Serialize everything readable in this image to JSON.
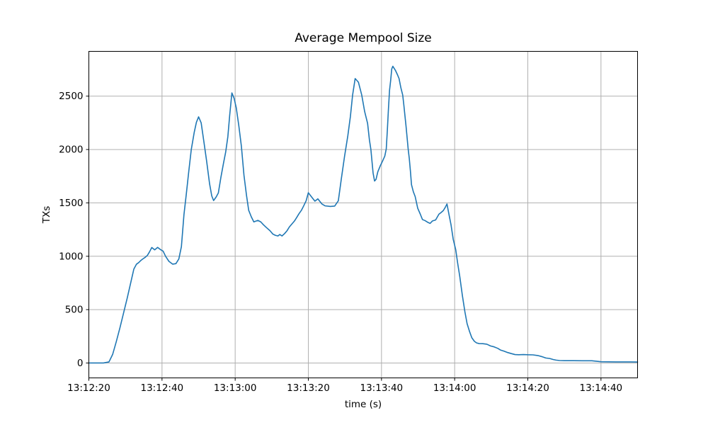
{
  "chart_data": {
    "type": "line",
    "title": "Average Mempool Size",
    "xlabel": "time (s)",
    "ylabel": "TXs",
    "grid": true,
    "legend": "none",
    "line_color": "#1f77b4",
    "grid_color": "#b0b0b0",
    "spine_color": "#000000",
    "xlim": [
      0,
      150
    ],
    "ylim": [
      -139.6,
      2919.6
    ],
    "xticks": [
      {
        "t": 0,
        "label": "13:12:20"
      },
      {
        "t": 20,
        "label": "13:12:40"
      },
      {
        "t": 40,
        "label": "13:13:00"
      },
      {
        "t": 60,
        "label": "13:13:20"
      },
      {
        "t": 80,
        "label": "13:13:40"
      },
      {
        "t": 100,
        "label": "13:14:00"
      },
      {
        "t": 120,
        "label": "13:14:20"
      },
      {
        "t": 140,
        "label": "13:14:40"
      }
    ],
    "yticks": [
      0,
      500,
      1000,
      1500,
      2000,
      2500
    ],
    "x_unit": "seconds after 13:12:20",
    "series": [
      {
        "name": "average-mempool-size",
        "points": [
          [
            0,
            0
          ],
          [
            2,
            0
          ],
          [
            4,
            0
          ],
          [
            5.5,
            10
          ],
          [
            6.5,
            80
          ],
          [
            7.5,
            200
          ],
          [
            8.5,
            330
          ],
          [
            9.5,
            470
          ],
          [
            10.5,
            610
          ],
          [
            11.5,
            760
          ],
          [
            12.3,
            880
          ],
          [
            13,
            925
          ],
          [
            13.6,
            940
          ],
          [
            14.2,
            960
          ],
          [
            14.8,
            976
          ],
          [
            15.4,
            990
          ],
          [
            16,
            1008
          ],
          [
            16.6,
            1042
          ],
          [
            17.2,
            1082
          ],
          [
            18,
            1060
          ],
          [
            18.8,
            1083
          ],
          [
            19.6,
            1062
          ],
          [
            20.3,
            1048
          ],
          [
            21,
            998
          ],
          [
            21.9,
            952
          ],
          [
            22.9,
            926
          ],
          [
            23.8,
            931
          ],
          [
            24.6,
            975
          ],
          [
            25.3,
            1090
          ],
          [
            26,
            1390
          ],
          [
            26.6,
            1570
          ],
          [
            27.3,
            1790
          ],
          [
            28,
            2000
          ],
          [
            28.8,
            2160
          ],
          [
            29.4,
            2255
          ],
          [
            30,
            2306
          ],
          [
            30.7,
            2250
          ],
          [
            31.5,
            2060
          ],
          [
            32.2,
            1890
          ],
          [
            33,
            1680
          ],
          [
            33.6,
            1565
          ],
          [
            34.1,
            1522
          ],
          [
            34.8,
            1555
          ],
          [
            35.4,
            1593
          ],
          [
            36.1,
            1740
          ],
          [
            36.8,
            1870
          ],
          [
            37.4,
            1975
          ],
          [
            38,
            2120
          ],
          [
            38.5,
            2320
          ],
          [
            39.1,
            2530
          ],
          [
            39.7,
            2480
          ],
          [
            40.3,
            2390
          ],
          [
            41,
            2222
          ],
          [
            41.7,
            2030
          ],
          [
            42.4,
            1760
          ],
          [
            43.1,
            1570
          ],
          [
            43.7,
            1430
          ],
          [
            44.4,
            1370
          ],
          [
            45.1,
            1322
          ],
          [
            46.2,
            1336
          ],
          [
            47,
            1322
          ],
          [
            47.7,
            1296
          ],
          [
            48.5,
            1270
          ],
          [
            49.5,
            1240
          ],
          [
            50.3,
            1208
          ],
          [
            51,
            1196
          ],
          [
            51.7,
            1190
          ],
          [
            52.2,
            1204
          ],
          [
            52.8,
            1190
          ],
          [
            53.5,
            1212
          ],
          [
            54.2,
            1240
          ],
          [
            54.8,
            1274
          ],
          [
            55.5,
            1302
          ],
          [
            56.2,
            1330
          ],
          [
            56.8,
            1362
          ],
          [
            57.4,
            1396
          ],
          [
            58.1,
            1430
          ],
          [
            58.7,
            1470
          ],
          [
            59.4,
            1520
          ],
          [
            60,
            1595
          ],
          [
            60.9,
            1555
          ],
          [
            61.8,
            1516
          ],
          [
            62.6,
            1538
          ],
          [
            63.7,
            1490
          ],
          [
            64.6,
            1472
          ],
          [
            66,
            1467
          ],
          [
            67.2,
            1470
          ],
          [
            68.2,
            1520
          ],
          [
            69,
            1720
          ],
          [
            69.9,
            1936
          ],
          [
            70.8,
            2130
          ],
          [
            71.5,
            2310
          ],
          [
            72.1,
            2510
          ],
          [
            72.8,
            2665
          ],
          [
            73.7,
            2630
          ],
          [
            74.6,
            2510
          ],
          [
            75.4,
            2355
          ],
          [
            76.2,
            2245
          ],
          [
            76.7,
            2090
          ],
          [
            77.1,
            2000
          ],
          [
            77.4,
            1890
          ],
          [
            77.7,
            1780
          ],
          [
            78.1,
            1705
          ],
          [
            78.5,
            1720
          ],
          [
            79,
            1792
          ],
          [
            79.7,
            1850
          ],
          [
            80.3,
            1892
          ],
          [
            80.9,
            1938
          ],
          [
            81.3,
            2005
          ],
          [
            81.6,
            2180
          ],
          [
            81.9,
            2380
          ],
          [
            82.2,
            2555
          ],
          [
            82.5,
            2645
          ],
          [
            82.8,
            2755
          ],
          [
            83.1,
            2780
          ],
          [
            83.8,
            2742
          ],
          [
            84.4,
            2698
          ],
          [
            84.8,
            2665
          ],
          [
            85.3,
            2578
          ],
          [
            85.8,
            2510
          ],
          [
            86.1,
            2420
          ],
          [
            86.4,
            2320
          ],
          [
            86.7,
            2222
          ],
          [
            87,
            2112
          ],
          [
            87.3,
            2002
          ],
          [
            87.6,
            1915
          ],
          [
            87.9,
            1800
          ],
          [
            88.2,
            1671
          ],
          [
            88.7,
            1605
          ],
          [
            89.2,
            1560
          ],
          [
            89.9,
            1450
          ],
          [
            90.6,
            1395
          ],
          [
            91.2,
            1344
          ],
          [
            91.9,
            1334
          ],
          [
            92.8,
            1315
          ],
          [
            93.3,
            1308
          ],
          [
            93.9,
            1330
          ],
          [
            94.8,
            1340
          ],
          [
            95.7,
            1394
          ],
          [
            96.3,
            1410
          ],
          [
            96.9,
            1428
          ],
          [
            97.4,
            1456
          ],
          [
            97.9,
            1490
          ],
          [
            98.4,
            1400
          ],
          [
            99,
            1296
          ],
          [
            99.6,
            1160
          ],
          [
            100.3,
            1060
          ],
          [
            100.8,
            940
          ],
          [
            101.4,
            810
          ],
          [
            102.1,
            634
          ],
          [
            102.8,
            480
          ],
          [
            103.4,
            369
          ],
          [
            104.1,
            292
          ],
          [
            104.7,
            236
          ],
          [
            105.4,
            203
          ],
          [
            106,
            188
          ],
          [
            106.7,
            182
          ],
          [
            107.7,
            181
          ],
          [
            108.8,
            176
          ],
          [
            109.8,
            160
          ],
          [
            110.8,
            151
          ],
          [
            111.8,
            137
          ],
          [
            112.5,
            122
          ],
          [
            113.5,
            111
          ],
          [
            114.5,
            98
          ],
          [
            115.5,
            88
          ],
          [
            116.5,
            79
          ],
          [
            117.5,
            77
          ],
          [
            118.8,
            79
          ],
          [
            120,
            77
          ],
          [
            121.4,
            76
          ],
          [
            122.7,
            70
          ],
          [
            123.8,
            60
          ],
          [
            124.9,
            47
          ],
          [
            126,
            42
          ],
          [
            126.9,
            33
          ],
          [
            127.7,
            27
          ],
          [
            128.7,
            23
          ],
          [
            130,
            22
          ],
          [
            132.5,
            22
          ],
          [
            135,
            21
          ],
          [
            137.5,
            21
          ],
          [
            138.9,
            16
          ],
          [
            140,
            12
          ],
          [
            142,
            11
          ],
          [
            144,
            10
          ],
          [
            146,
            10
          ],
          [
            148,
            10
          ],
          [
            150,
            9
          ]
        ]
      }
    ]
  }
}
